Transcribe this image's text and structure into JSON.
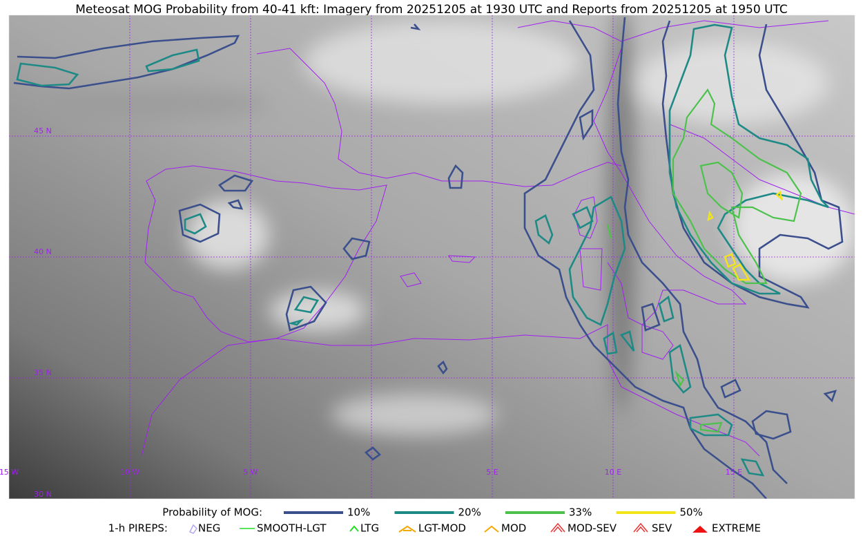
{
  "title": "Meteosat MOG Probability from 40-41 kft: Imagery from 20251205 at 1930 UTC and Reports from 20251205 at 1950 UTC",
  "map": {
    "lat_labels": [
      "45 N",
      "40 N",
      "35 N",
      "30 N"
    ],
    "lon_labels": [
      "15 W",
      "10 W",
      "5 W",
      "5 E",
      "10 E",
      "15 E"
    ]
  },
  "legend": {
    "probability": {
      "label": "Probability of MOG:",
      "items": [
        {
          "label": "10%",
          "color": "#3a4f8c"
        },
        {
          "label": "20%",
          "color": "#1e8a86"
        },
        {
          "label": "33%",
          "color": "#4cc24c"
        },
        {
          "label": "50%",
          "color": "#f2e51a"
        }
      ]
    },
    "pireps": {
      "label": "1-h PIREPS:",
      "items": [
        "NEG",
        "SMOOTH-LGT",
        "LTG",
        "LGT-MOD",
        "MOD",
        "MOD-SEV",
        "SEV",
        "EXTREME"
      ]
    }
  }
}
